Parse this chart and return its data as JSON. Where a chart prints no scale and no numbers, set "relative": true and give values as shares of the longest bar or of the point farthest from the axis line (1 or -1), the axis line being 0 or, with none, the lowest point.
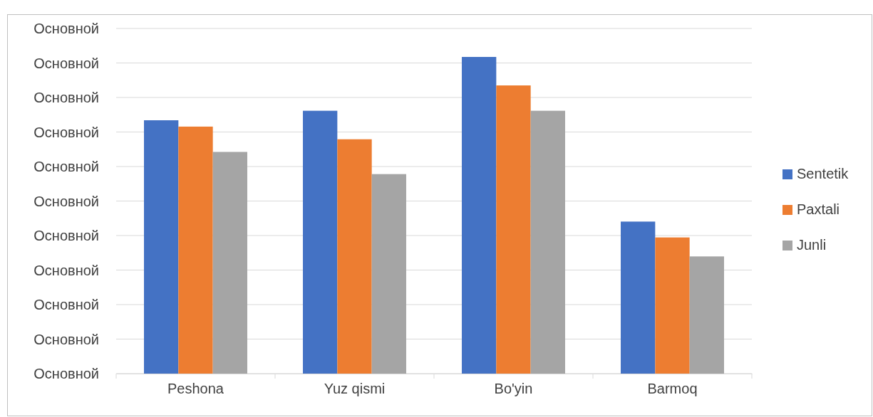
{
  "chart_data": {
    "type": "bar",
    "categories": [
      "Peshona",
      "Yuz qismi",
      "Bo'yin",
      "Barmoq"
    ],
    "series": [
      {
        "name": "Sentetik",
        "color": "#4472c4",
        "values": [
          0.8,
          0.83,
          1,
          0.48
        ]
      },
      {
        "name": "Paxtali",
        "color": "#ed7d31",
        "values": [
          0.78,
          0.74,
          0.91,
          0.43
        ]
      },
      {
        "name": "Junli",
        "color": "#a5a5a5",
        "values": [
          0.7,
          0.63,
          0.83,
          0.37
        ]
      }
    ],
    "relative": true,
    "annotations": [
      "Основной",
      "Основной",
      "Основной",
      "Основной",
      "Основной",
      "Основной",
      "Основной",
      "Основной",
      "Основной",
      "Основной",
      "Основной"
    ],
    "grid": true,
    "legend": "right"
  }
}
